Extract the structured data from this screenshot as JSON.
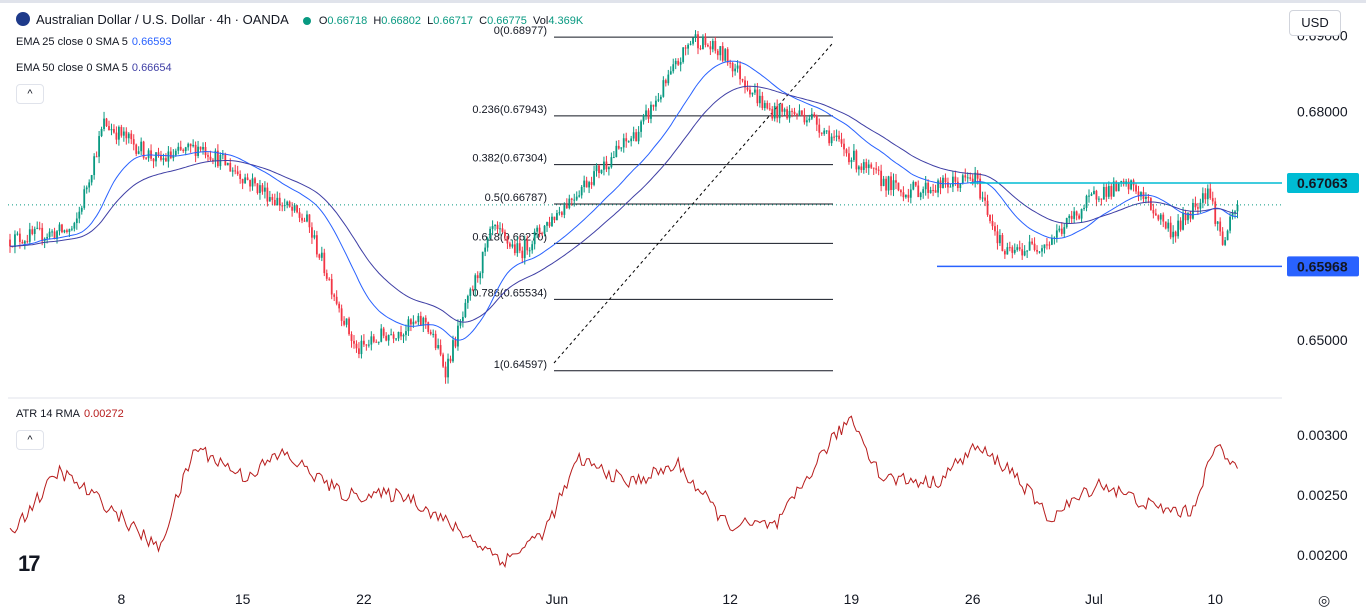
{
  "header": {
    "symbol": "Australian Dollar / U.S. Dollar · 4h · OANDA",
    "open_label": "O",
    "open": "0.66718",
    "high_label": "H",
    "high": "0.66802",
    "low_label": "L",
    "low": "0.66717",
    "close_label": "C",
    "close": "0.66775",
    "vol_label": "Vol",
    "vol": "4.369K",
    "up_color": "#089981",
    "down_color": "#f23645"
  },
  "indicators": {
    "ema25": {
      "label": "EMA 25 close 0 SMA 5",
      "value": "0.66593",
      "color": "#2962ff"
    },
    "ema50": {
      "label": "EMA 50 close 0 SMA 5",
      "value": "0.66654",
      "color": "#3f3fa5"
    },
    "atr": {
      "label": "ATR 14 RMA",
      "value": "0.00272",
      "color": "#b71c1c"
    }
  },
  "currency_button": "USD",
  "collapse_icon": "^",
  "logo_text": "17",
  "chart_data": [
    {
      "type": "candlestick",
      "title": "Australian Dollar / U.S. Dollar · 4h · OANDA",
      "ylim": [
        0.6445,
        0.6915
      ],
      "y_ticks": [
        0.65,
        0.68,
        0.69
      ],
      "y_tick_labels": [
        "0.65000",
        "0.68000",
        "0.69000"
      ],
      "x_tick_labels": [
        "8",
        "15",
        "22",
        "Jun",
        "12",
        "19",
        "26",
        "Jul",
        "10"
      ],
      "anchors": [
        [
          0,
          0.6632
        ],
        [
          26,
          0.6645
        ],
        [
          38,
          0.6785
        ],
        [
          60,
          0.6735
        ],
        [
          77,
          0.6755
        ],
        [
          120,
          0.6655
        ],
        [
          140,
          0.6485
        ],
        [
          150,
          0.6505
        ],
        [
          168,
          0.6525
        ],
        [
          176,
          0.6462
        ],
        [
          195,
          0.6645
        ],
        [
          206,
          0.6615
        ],
        [
          232,
          0.6705
        ],
        [
          254,
          0.6775
        ],
        [
          276,
          0.6898
        ],
        [
          290,
          0.687
        ],
        [
          306,
          0.6802
        ],
        [
          323,
          0.6795
        ],
        [
          345,
          0.6725
        ],
        [
          360,
          0.6695
        ],
        [
          375,
          0.6702
        ],
        [
          390,
          0.6712
        ],
        [
          402,
          0.6612
        ],
        [
          420,
          0.663
        ],
        [
          440,
          0.6695
        ],
        [
          454,
          0.6702
        ],
        [
          470,
          0.664
        ],
        [
          484,
          0.67
        ],
        [
          490,
          0.6627
        ],
        [
          496,
          0.6676
        ]
      ],
      "bar_count": 497,
      "last_close": 0.66775,
      "fibonacci": [
        {
          "level": "0",
          "price": 0.68977,
          "label": "0(0.68977)"
        },
        {
          "level": "0.236",
          "price": 0.67943,
          "label": "0.236(0.67943)"
        },
        {
          "level": "0.382",
          "price": 0.67304,
          "label": "0.382(0.67304)"
        },
        {
          "level": "0.5",
          "price": 0.66787,
          "label": "0.5(0.66787)"
        },
        {
          "level": "0.618",
          "price": 0.6627,
          "label": "0.618(0.66270)"
        },
        {
          "level": "0.786",
          "price": 0.65534,
          "label": "0.786(0.65534)"
        },
        {
          "level": "1",
          "price": 0.64597,
          "label": "1(0.64597)"
        }
      ],
      "horizontal_levels": [
        {
          "price": 0.67063,
          "label": "0.67063",
          "color": "#00bcd4"
        },
        {
          "price": 0.65968,
          "label": "0.65968",
          "color": "#2962ff"
        }
      ]
    },
    {
      "type": "line",
      "title": "ATR 14 RMA",
      "ylim": [
        0.00185,
        0.00325
      ],
      "y_ticks": [
        0.002,
        0.0025,
        0.003
      ],
      "y_tick_labels": [
        "0.00200",
        "0.00250",
        "0.00300"
      ],
      "anchors": [
        [
          0,
          0.00218
        ],
        [
          20,
          0.0027
        ],
        [
          40,
          0.0024
        ],
        [
          60,
          0.00205
        ],
        [
          75,
          0.0029
        ],
        [
          95,
          0.00265
        ],
        [
          110,
          0.00285
        ],
        [
          135,
          0.0025
        ],
        [
          160,
          0.0025
        ],
        [
          178,
          0.00225
        ],
        [
          200,
          0.00195
        ],
        [
          216,
          0.0022
        ],
        [
          230,
          0.0028
        ],
        [
          250,
          0.0026
        ],
        [
          270,
          0.00275
        ],
        [
          290,
          0.00225
        ],
        [
          310,
          0.00225
        ],
        [
          330,
          0.0029
        ],
        [
          340,
          0.00315
        ],
        [
          352,
          0.00265
        ],
        [
          374,
          0.0026
        ],
        [
          390,
          0.0029
        ],
        [
          405,
          0.0027
        ],
        [
          420,
          0.0023
        ],
        [
          440,
          0.0026
        ],
        [
          462,
          0.0024
        ],
        [
          477,
          0.00235
        ],
        [
          487,
          0.0029
        ],
        [
          496,
          0.00272
        ]
      ],
      "last_value": 0.00272
    }
  ]
}
